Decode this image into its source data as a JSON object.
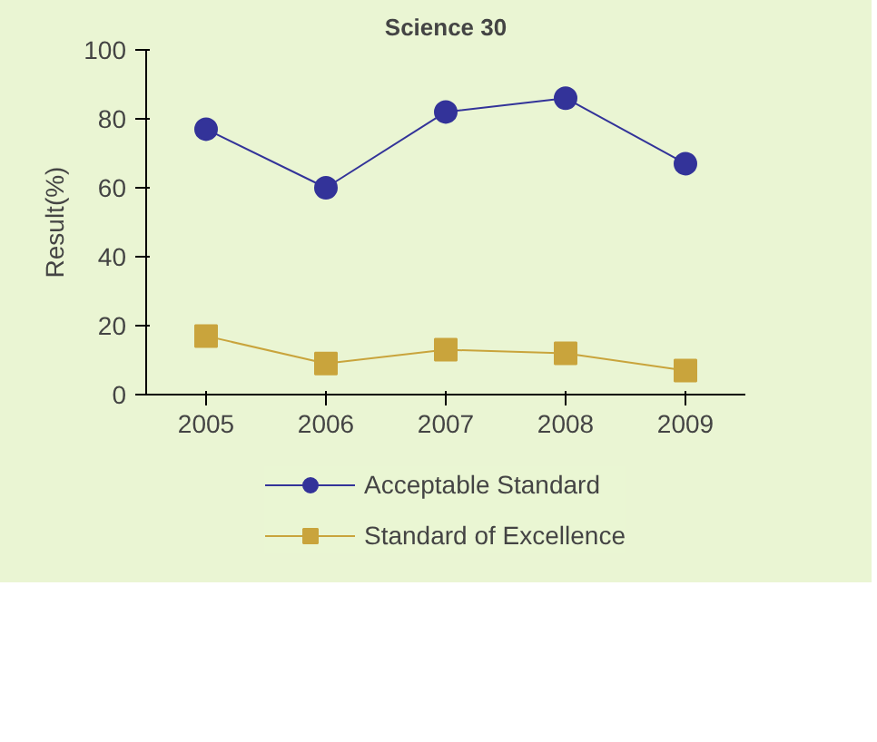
{
  "chart_data": {
    "type": "line",
    "title": "Science 30",
    "ylabel": "Result(%)",
    "categories": [
      "2005",
      "2006",
      "2007",
      "2008",
      "2009"
    ],
    "series": [
      {
        "name": "Acceptable Standard",
        "color": "#333399",
        "values": [
          77,
          60,
          82,
          86,
          67
        ],
        "marker": "circle"
      },
      {
        "name": "Standard of Excellence",
        "color": "#c9a43c",
        "values": [
          17,
          9,
          13,
          12,
          7
        ],
        "marker": "square"
      }
    ],
    "ylim": [
      0,
      100
    ],
    "yticks": [
      0,
      20,
      40,
      60,
      80,
      100
    ],
    "grid": false,
    "legend": "bottom",
    "line_style": "solid"
  }
}
